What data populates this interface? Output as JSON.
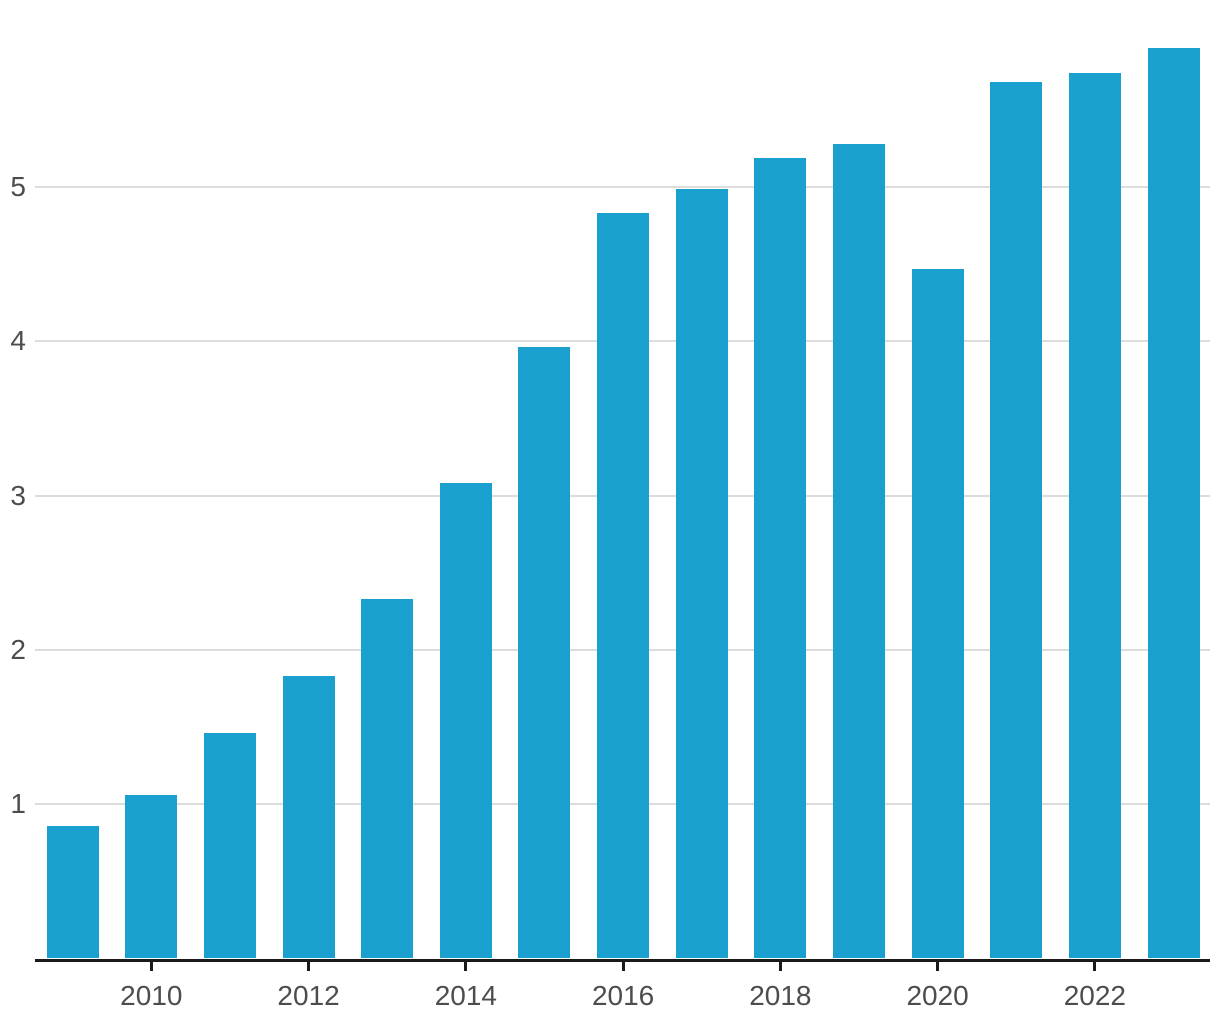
{
  "chart_data": {
    "type": "bar",
    "categories": [
      "2009",
      "2010",
      "2011",
      "2012",
      "2013",
      "2014",
      "2015",
      "2016",
      "2017",
      "2018",
      "2019",
      "2020",
      "2021",
      "2022",
      "2023"
    ],
    "values": [
      0.86,
      1.06,
      1.46,
      1.83,
      2.33,
      3.08,
      3.96,
      4.83,
      4.99,
      5.19,
      5.28,
      4.47,
      5.68,
      5.74,
      5.9
    ],
    "title": "",
    "xlabel": "",
    "ylabel": "",
    "x_tick_labels": [
      "2010",
      "2012",
      "2014",
      "2016",
      "2018",
      "2020",
      "2022"
    ],
    "y_tick_labels": [
      "1",
      "2",
      "3",
      "4",
      "5"
    ],
    "y_tick_values": [
      1,
      2,
      3,
      4,
      5
    ],
    "ylim": [
      0,
      6.2
    ],
    "grid": "horizontal",
    "legend": "none",
    "colors": {
      "bar": "#19A0CE",
      "gridline": "#DCDCDC",
      "axis": "#1A1A1A",
      "tick": "#1A1A1A",
      "label": "#4D4D4D"
    }
  }
}
